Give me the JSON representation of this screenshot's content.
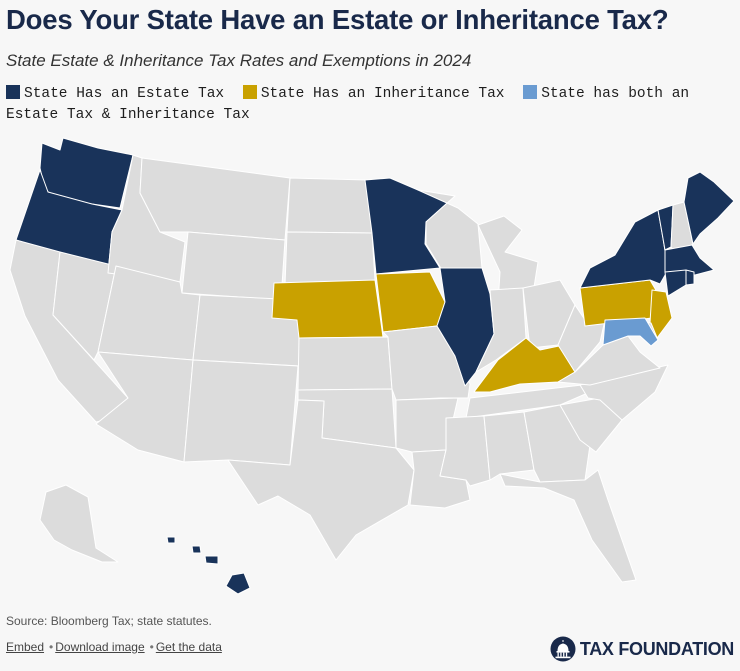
{
  "title": "Does Your State Have an Estate or Inheritance Tax?",
  "subtitle": "State Estate & Inheritance Tax Rates and Exemptions in 2024",
  "legend": [
    {
      "label": "State Has an Estate Tax",
      "color": "#19335a"
    },
    {
      "label": "State Has an Inheritance Tax",
      "color": "#c9a100"
    },
    {
      "label": "State has both an Estate Tax & Inheritance Tax",
      "color": "#6a9bd1"
    }
  ],
  "colors": {
    "none": "#dcdcdc",
    "border": "#ffffff"
  },
  "states": {
    "estate_tax": [
      "Washington",
      "Oregon",
      "Minnesota",
      "Illinois",
      "New York",
      "Vermont",
      "Maine",
      "Massachusetts",
      "Rhode Island",
      "Connecticut",
      "Hawaii"
    ],
    "inheritance_tax": [
      "Nebraska",
      "Iowa",
      "Kentucky",
      "Pennsylvania",
      "New Jersey"
    ],
    "both": [
      "Maryland"
    ]
  },
  "source": "Source: Bloomberg Tax; state statutes.",
  "links": {
    "embed": "Embed",
    "download": "Download image",
    "data": "Get the data"
  },
  "brand": {
    "name": "TAX FOUNDATION",
    "icon": "capitol-dome-icon"
  }
}
